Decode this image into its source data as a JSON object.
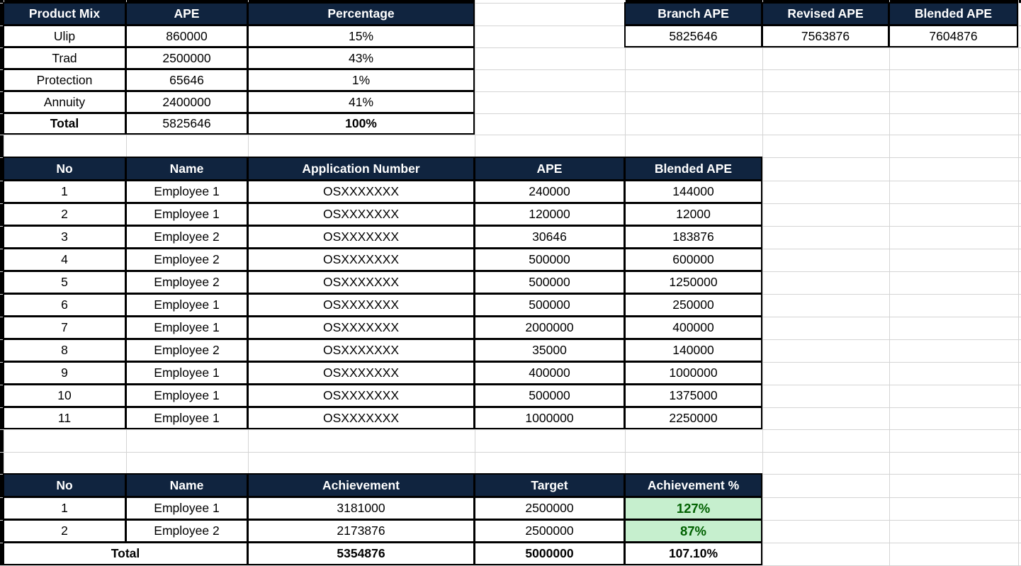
{
  "product_mix": {
    "headers": [
      "Product Mix",
      "APE",
      "Percentage"
    ],
    "rows": [
      [
        "Ulip",
        "860000",
        "15%"
      ],
      [
        "Trad",
        "2500000",
        "43%"
      ],
      [
        "Protection",
        "65646",
        "1%"
      ],
      [
        "Annuity",
        "2400000",
        "41%"
      ]
    ],
    "total": [
      "Total",
      "5825646",
      "100%"
    ]
  },
  "summary": {
    "headers": [
      "Branch APE",
      "Revised APE",
      "Blended APE"
    ],
    "values": [
      "5825646",
      "7563876",
      "7604876"
    ]
  },
  "applications": {
    "headers": [
      "No",
      "Name",
      "Application Number",
      "APE",
      "Blended APE"
    ],
    "rows": [
      [
        "1",
        "Employee 1",
        "OSXXXXXXX",
        "240000",
        "144000"
      ],
      [
        "2",
        "Employee 1",
        "OSXXXXXXX",
        "120000",
        "12000"
      ],
      [
        "3",
        "Employee 2",
        "OSXXXXXXX",
        "30646",
        "183876"
      ],
      [
        "4",
        "Employee 2",
        "OSXXXXXXX",
        "500000",
        "600000"
      ],
      [
        "5",
        "Employee 2",
        "OSXXXXXXX",
        "500000",
        "1250000"
      ],
      [
        "6",
        "Employee 1",
        "OSXXXXXXX",
        "500000",
        "250000"
      ],
      [
        "7",
        "Employee 1",
        "OSXXXXXXX",
        "2000000",
        "400000"
      ],
      [
        "8",
        "Employee 2",
        "OSXXXXXXX",
        "35000",
        "140000"
      ],
      [
        "9",
        "Employee 1",
        "OSXXXXXXX",
        "400000",
        "1000000"
      ],
      [
        "10",
        "Employee 1",
        "OSXXXXXXX",
        "500000",
        "1375000"
      ],
      [
        "11",
        "Employee 1",
        "OSXXXXXXX",
        "1000000",
        "2250000"
      ]
    ]
  },
  "achievement": {
    "headers": [
      "No",
      "Name",
      "Achievement",
      "Target",
      "Achievement %"
    ],
    "rows": [
      [
        "1",
        "Employee 1",
        "3181000",
        "2500000",
        "127%"
      ],
      [
        "2",
        "Employee 2",
        "2173876",
        "2500000",
        "87%"
      ]
    ],
    "total": [
      "Total",
      "5354876",
      "5000000",
      "107.10%"
    ]
  },
  "colors": {
    "header_bg": "#10243f",
    "header_text": "#ffffff",
    "positive_bg": "#c6efce",
    "positive_text": "#006100",
    "gridline": "#d4d4d4"
  }
}
